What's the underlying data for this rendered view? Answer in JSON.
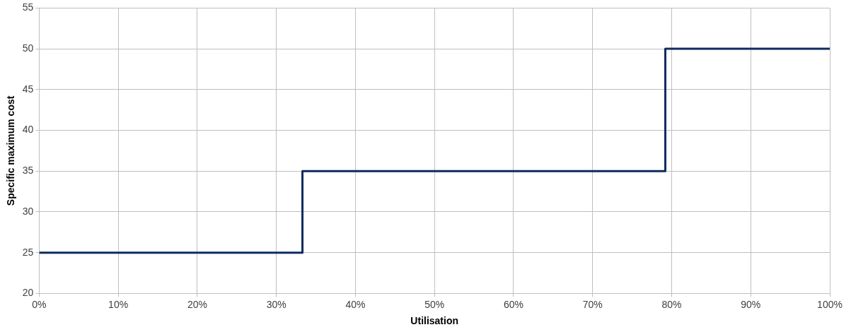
{
  "chart_data": {
    "type": "step",
    "xlabel": "Utilisation",
    "ylabel": "Specific maximum cost",
    "x": [
      0,
      33.3,
      79.2,
      100
    ],
    "series": [
      {
        "color": "#0d2b5e",
        "values": [
          25,
          35,
          50,
          50
        ]
      }
    ],
    "xlim": [
      0,
      100
    ],
    "xticks": [
      {
        "value": 0,
        "label": "0%"
      },
      {
        "value": 10,
        "label": "10%"
      },
      {
        "value": 20,
        "label": "20%"
      },
      {
        "value": 30,
        "label": "30%"
      },
      {
        "value": 40,
        "label": "40%"
      },
      {
        "value": 50,
        "label": "50%"
      },
      {
        "value": 60,
        "label": "60%"
      },
      {
        "value": 70,
        "label": "70%"
      },
      {
        "value": 80,
        "label": "80%"
      },
      {
        "value": 90,
        "label": "90%"
      },
      {
        "value": 100,
        "label": "100%"
      }
    ],
    "ylim": [
      20,
      55
    ],
    "yticks": [
      20,
      25,
      30,
      35,
      40,
      45,
      50,
      55
    ],
    "grid": true,
    "legend": false,
    "marker": "none",
    "line_style": "solid"
  }
}
